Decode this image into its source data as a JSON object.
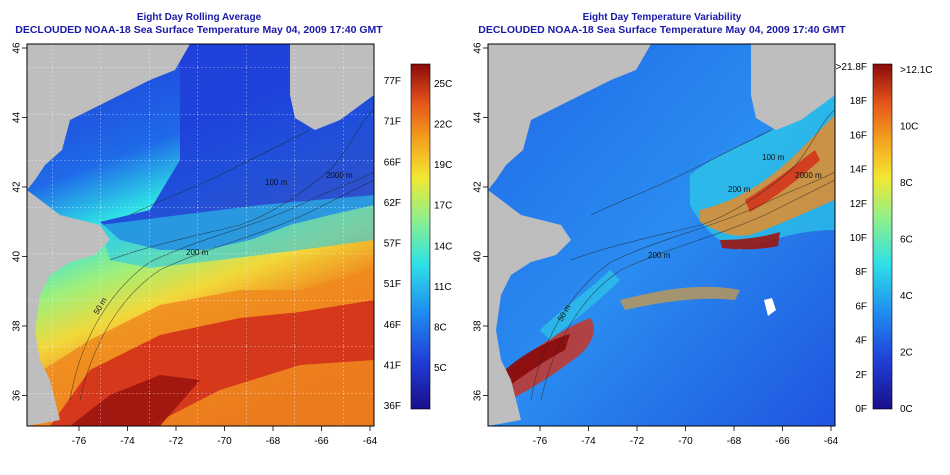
{
  "panels": [
    {
      "id": "average",
      "title": "Eight Day Rolling Average",
      "subtitle": "DECLOUDED NOAA-18 Sea Surface Temperature May 04, 2009 17:40 GMT",
      "colorbar_left_labels": [
        "77F",
        "71F",
        "66F",
        "62F",
        "57F",
        "51F",
        "46F",
        "41F",
        "36F"
      ],
      "colorbar_right_labels": [
        "25C",
        "22C",
        "19C",
        "17C",
        "14C",
        "11C",
        "8C",
        "5C"
      ],
      "contour_labels": [
        "2000 m",
        "200 m",
        "50 m",
        "100 m"
      ]
    },
    {
      "id": "variability",
      "title": "Eight Day Temperature Variability",
      "subtitle": "DECLOUDED NOAA-18 Sea Surface Temperature May 04, 2009 17:40 GMT",
      "colorbar_left_labels": [
        ">21.8F",
        "18F",
        "16F",
        "14F",
        "12F",
        "10F",
        "8F",
        "6F",
        "4F",
        "2F",
        "0F"
      ],
      "colorbar_right_labels": [
        ">12.1C",
        "10C",
        "8C",
        "6C",
        "4C",
        "2C",
        "0C"
      ],
      "contour_labels": [
        "100 m",
        "2000 m",
        "200 m",
        "200 m",
        "50 m"
      ]
    }
  ],
  "axes": {
    "longitude_ticks": [
      "-76",
      "-74",
      "-72",
      "-70",
      "-68",
      "-66",
      "-64"
    ],
    "latitude_ticks": [
      "46",
      "44",
      "42",
      "40",
      "38",
      "36"
    ]
  },
  "colors": {
    "title": "#1a1aa8",
    "land": "#bebebe",
    "sst_scale": [
      "#1a0f8a",
      "#1f3fd8",
      "#1f8cf0",
      "#2ee0e6",
      "#8ef08c",
      "#f2e832",
      "#f5a21e",
      "#e4521a",
      "#8a0a0a"
    ]
  }
}
